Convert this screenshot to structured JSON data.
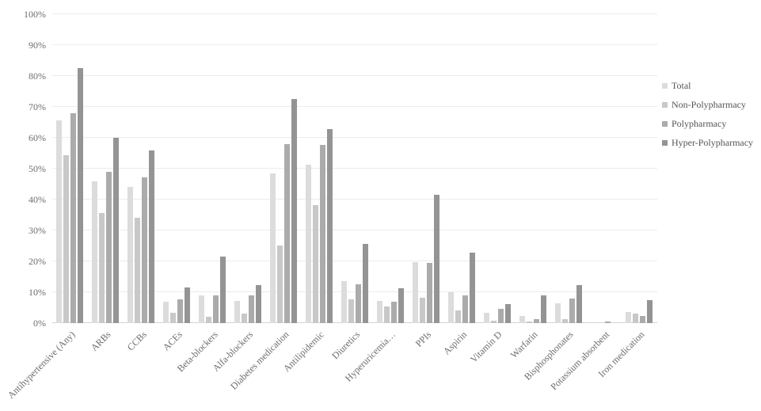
{
  "chart_data": {
    "type": "bar",
    "title": "",
    "xlabel": "",
    "ylabel": "",
    "ylim": [
      0,
      100
    ],
    "grid": true,
    "legend_position": "right",
    "yticks": [
      "0%",
      "10%",
      "20%",
      "30%",
      "40%",
      "50%",
      "60%",
      "70%",
      "80%",
      "90%",
      "100%"
    ],
    "categories": [
      "Antihypertensive (Any)",
      "ARBs",
      "CCBs",
      "ACEs",
      "Beta-blockers",
      "Alfa-blockers",
      "Diabetes medication",
      "Antilipidemic",
      "Diuretics",
      "Hyperuricemia…",
      "PPIs",
      "Aspirin",
      "Vitamin D",
      "Warfarin",
      "Bisphosphonates",
      "Potassium absorbent",
      "Iron medication"
    ],
    "series": [
      {
        "name": "Total",
        "color": "#dcdcdc",
        "values": [
          65.6,
          46.0,
          44.0,
          6.8,
          8.9,
          7.3,
          48.5,
          51.2,
          13.6,
          7.2,
          19.8,
          10.0,
          3.4,
          2.3,
          6.4,
          0,
          3.6
        ]
      },
      {
        "name": "Non-Polypharmacy",
        "color": "#c8c8c8",
        "values": [
          54.4,
          35.7,
          34.0,
          3.4,
          2.0,
          3.2,
          25.1,
          38.3,
          7.7,
          5.5,
          8.3,
          4.2,
          0.7,
          0.4,
          1.2,
          0,
          3.0
        ]
      },
      {
        "name": "Polypharmacy",
        "color": "#ababab",
        "values": [
          68.0,
          49.1,
          47.1,
          7.6,
          9.0,
          9.0,
          58.0,
          57.7,
          12.6,
          7.0,
          19.4,
          9.0,
          4.6,
          1.4,
          7.9,
          0.5,
          2.4
        ]
      },
      {
        "name": "Hyper-Polypharmacy",
        "color": "#949494",
        "values": [
          82.6,
          60.0,
          56.0,
          11.5,
          21.6,
          12.2,
          72.5,
          62.7,
          25.6,
          11.3,
          41.6,
          22.7,
          6.1,
          8.9,
          12.3,
          0,
          7.4
        ]
      }
    ]
  }
}
